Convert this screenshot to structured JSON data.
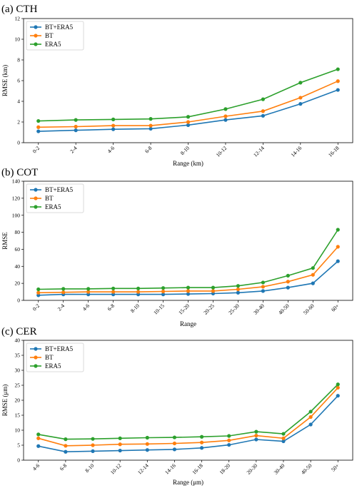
{
  "chart_data": [
    {
      "type": "line",
      "title": "(a) CTH",
      "xlabel": "Range (km)",
      "ylabel": "RMSE (km)",
      "ylim": [
        0,
        12
      ],
      "yticks": [
        0,
        2,
        4,
        6,
        8,
        10,
        12
      ],
      "categories": [
        "0-2",
        "2-4",
        "4-6",
        "6-8",
        "8-10",
        "10-12",
        "12-14",
        "14-16",
        "16-18"
      ],
      "legend": "top-left",
      "grid": false,
      "series": [
        {
          "name": "BT+ERA5",
          "color": "#1f77b4",
          "values": [
            1.1,
            1.2,
            1.3,
            1.35,
            1.7,
            2.2,
            2.6,
            3.75,
            5.1
          ]
        },
        {
          "name": "BT",
          "color": "#ff7f0e",
          "values": [
            1.5,
            1.55,
            1.65,
            1.65,
            2.0,
            2.55,
            3.05,
            4.35,
            5.95
          ]
        },
        {
          "name": "ERA5",
          "color": "#2ca02c",
          "values": [
            2.1,
            2.2,
            2.25,
            2.3,
            2.5,
            3.25,
            4.2,
            5.8,
            7.1
          ]
        }
      ]
    },
    {
      "type": "line",
      "title": "(b) COT",
      "xlabel": "Range",
      "ylabel": "RMSE",
      "ylim": [
        0,
        140
      ],
      "yticks": [
        0,
        20,
        40,
        60,
        80,
        100,
        120,
        140
      ],
      "categories": [
        "0-2",
        "2-4",
        "4-6",
        "6-8",
        "8-10",
        "10-15",
        "15-20",
        "20-25",
        "25-30",
        "30-40",
        "40-50",
        "50-60",
        "60+"
      ],
      "legend": "top-left",
      "grid": false,
      "series": [
        {
          "name": "BT+ERA5",
          "color": "#1f77b4",
          "values": [
            6,
            7,
            7,
            7,
            7,
            7,
            7.5,
            8,
            9,
            11,
            15,
            20,
            46
          ]
        },
        {
          "name": "BT",
          "color": "#ff7f0e",
          "values": [
            9,
            9.5,
            10,
            10,
            10,
            10.5,
            11,
            11,
            13,
            16,
            22,
            30,
            63
          ]
        },
        {
          "name": "ERA5",
          "color": "#2ca02c",
          "values": [
            13,
            13.5,
            13.5,
            14,
            14,
            14.5,
            15,
            15,
            17,
            21,
            29,
            38,
            83
          ]
        }
      ]
    },
    {
      "type": "line",
      "title": "(c) CER",
      "xlabel": "Range (μm)",
      "ylabel": "RMSE (μm)",
      "ylim": [
        0,
        40
      ],
      "yticks": [
        0,
        5,
        10,
        15,
        20,
        25,
        30,
        35,
        40
      ],
      "categories": [
        "4-6",
        "6-8",
        "8-10",
        "10-12",
        "12-14",
        "14-16",
        "16-18",
        "18-20",
        "20-30",
        "30-40",
        "40-50",
        "50+"
      ],
      "legend": "top-left",
      "grid": false,
      "series": [
        {
          "name": "BT+ERA5",
          "color": "#1f77b4",
          "values": [
            4.7,
            2.8,
            3.0,
            3.2,
            3.4,
            3.6,
            4.1,
            5.1,
            6.9,
            6.3,
            11.9,
            21.5
          ]
        },
        {
          "name": "BT",
          "color": "#ff7f0e",
          "values": [
            7.3,
            4.8,
            5.0,
            5.3,
            5.4,
            5.6,
            5.9,
            6.6,
            8.2,
            7.3,
            14.4,
            24.2
          ]
        },
        {
          "name": "ERA5",
          "color": "#2ca02c",
          "values": [
            8.6,
            7.0,
            7.1,
            7.3,
            7.5,
            7.6,
            7.8,
            8.1,
            9.5,
            8.8,
            16.2,
            25.3
          ]
        }
      ]
    }
  ]
}
